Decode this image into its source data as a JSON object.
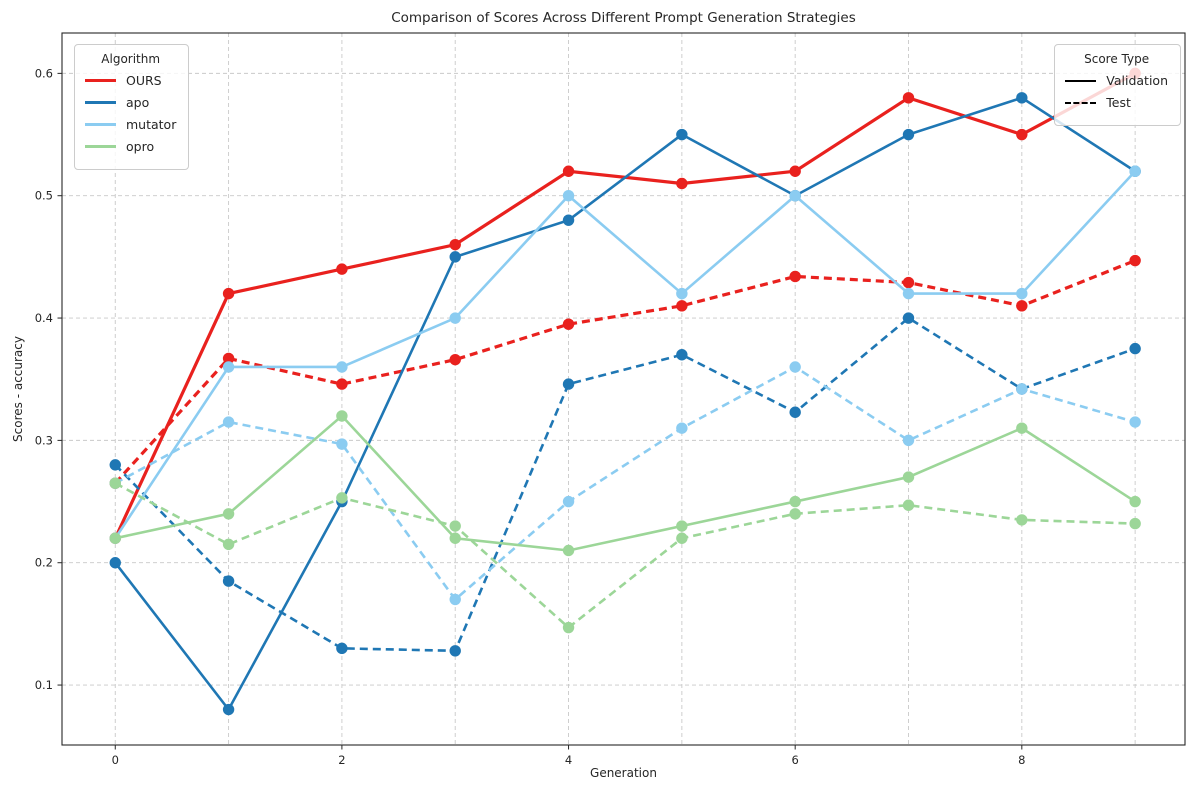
{
  "chart_data": {
    "type": "line",
    "title": "Comparison of Scores Across Different Prompt Generation Strategies",
    "xlabel": "Generation",
    "ylabel": "Scores - accuracy",
    "x": [
      0,
      1,
      2,
      3,
      4,
      5,
      6,
      7,
      8,
      9
    ],
    "xticks": [
      0,
      2,
      4,
      6,
      8
    ],
    "yticks": [
      0.1,
      0.2,
      0.3,
      0.4,
      0.5,
      0.6
    ],
    "xlim": [
      -0.47,
      9.44
    ],
    "ylim": [
      0.051,
      0.633
    ],
    "grid": true,
    "grid_style": "dashed",
    "legend_position": {
      "algorithm": "upper left",
      "score_type": "upper right"
    },
    "series": [
      {
        "algorithm": "OURS",
        "score_type": "Validation",
        "color": "#e9211e",
        "dashed": false,
        "values": [
          0.22,
          0.42,
          0.44,
          0.46,
          0.52,
          0.51,
          0.52,
          0.58,
          0.55,
          0.6
        ]
      },
      {
        "algorithm": "OURS",
        "score_type": "Test",
        "color": "#e9211e",
        "dashed": true,
        "values": [
          0.265,
          0.367,
          0.346,
          0.366,
          0.395,
          0.41,
          0.434,
          0.429,
          0.41,
          0.447
        ]
      },
      {
        "algorithm": "apo",
        "score_type": "Validation",
        "color": "#1f77b4",
        "dashed": false,
        "values": [
          0.2,
          0.08,
          0.25,
          0.45,
          0.48,
          0.55,
          0.5,
          0.55,
          0.58,
          0.52
        ]
      },
      {
        "algorithm": "apo",
        "score_type": "Test",
        "color": "#1f77b4",
        "dashed": true,
        "values": [
          0.28,
          0.185,
          0.13,
          0.128,
          0.346,
          0.37,
          0.323,
          0.4,
          0.342,
          0.375
        ]
      },
      {
        "algorithm": "mutator",
        "score_type": "Validation",
        "color": "#8bccf1",
        "dashed": false,
        "values": [
          0.22,
          0.36,
          0.36,
          0.4,
          0.5,
          0.42,
          0.5,
          0.42,
          0.42,
          0.52
        ]
      },
      {
        "algorithm": "mutator",
        "score_type": "Test",
        "color": "#8bccf1",
        "dashed": true,
        "values": [
          0.265,
          0.315,
          0.297,
          0.17,
          0.25,
          0.31,
          0.36,
          0.3,
          0.342,
          0.315
        ]
      },
      {
        "algorithm": "opro",
        "score_type": "Validation",
        "color": "#9cd698",
        "dashed": false,
        "values": [
          0.22,
          0.24,
          0.32,
          0.22,
          0.21,
          0.23,
          0.25,
          0.27,
          0.31,
          0.25
        ]
      },
      {
        "algorithm": "opro",
        "score_type": "Test",
        "color": "#9cd698",
        "dashed": true,
        "values": [
          0.265,
          0.215,
          0.253,
          0.23,
          0.147,
          0.22,
          0.24,
          0.247,
          0.235,
          0.232
        ]
      }
    ],
    "legends": {
      "algorithm": {
        "title": "Algorithm",
        "entries": [
          {
            "label": "OURS",
            "color": "#e9211e"
          },
          {
            "label": "apo",
            "color": "#1f77b4"
          },
          {
            "label": "mutator",
            "color": "#8bccf1"
          },
          {
            "label": "opro",
            "color": "#9cd698"
          }
        ]
      },
      "score_type": {
        "title": "Score Type",
        "entries": [
          {
            "label": "Validation",
            "dashed": false
          },
          {
            "label": "Test",
            "dashed": true
          }
        ]
      }
    }
  }
}
